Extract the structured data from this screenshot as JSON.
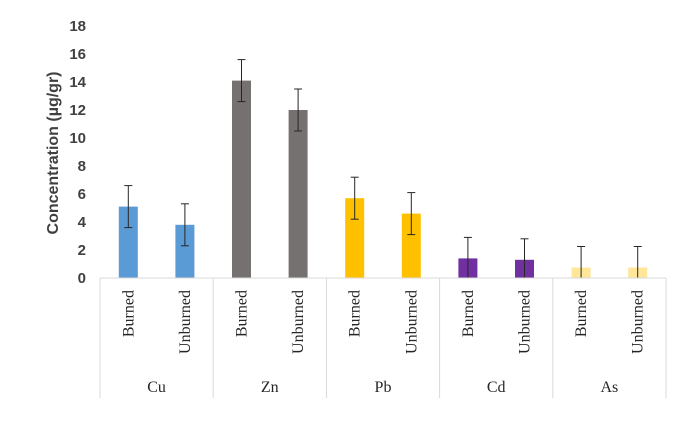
{
  "chart_data": {
    "type": "bar",
    "title": "",
    "ylabel": "Concentration (µg/gr)",
    "xlabel": "",
    "ylim": [
      0,
      18
    ],
    "yticks": [
      0,
      2,
      4,
      6,
      8,
      10,
      12,
      14,
      16,
      18
    ],
    "grid": false,
    "groups": [
      {
        "name": "Cu",
        "color": "#5B9BD5",
        "bars": [
          {
            "label": "Burned",
            "value": 5.1,
            "error": 1.5
          },
          {
            "label": "Unburned",
            "value": 3.8,
            "error": 1.5
          }
        ]
      },
      {
        "name": "Zn",
        "color": "#767171",
        "bars": [
          {
            "label": "Burned",
            "value": 14.1,
            "error": 1.5
          },
          {
            "label": "Unburned",
            "value": 12.0,
            "error": 1.5
          }
        ]
      },
      {
        "name": "Pb",
        "color": "#FFC000",
        "bars": [
          {
            "label": "Burned",
            "value": 5.7,
            "error": 1.5
          },
          {
            "label": "Unburned",
            "value": 4.6,
            "error": 1.5
          }
        ]
      },
      {
        "name": "Cd",
        "color": "#7030A0",
        "bars": [
          {
            "label": "Burned",
            "value": 1.4,
            "error": 1.5
          },
          {
            "label": "Unburned",
            "value": 1.3,
            "error": 1.5
          }
        ]
      },
      {
        "name": "As",
        "color": "#FFE699",
        "bars": [
          {
            "label": "Burned",
            "value": 0.75,
            "error": 1.5
          },
          {
            "label": "Unburned",
            "value": 0.75,
            "error": 1.5
          }
        ]
      }
    ]
  }
}
